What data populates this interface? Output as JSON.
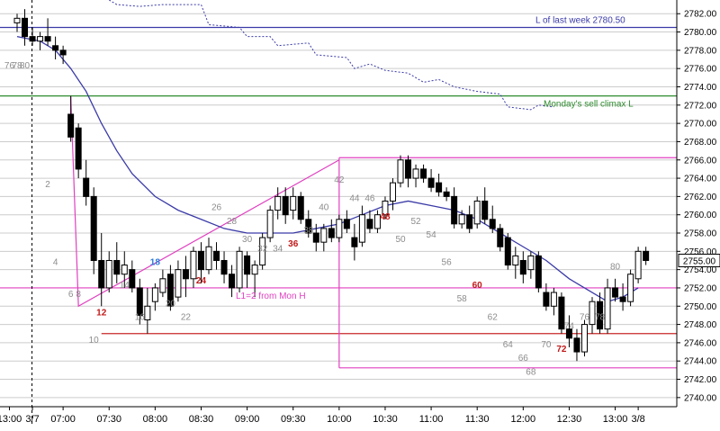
{
  "chart_data": {
    "type": "candlestick",
    "y_axis": {
      "range": [
        2739,
        2783.5
      ],
      "tick_labels": [
        "2782.00",
        "2780.00",
        "2778.00",
        "2776.00",
        "2774.00",
        "2772.00",
        "2770.00",
        "2768.00",
        "2766.00",
        "2764.00",
        "2762.00",
        "2760.00",
        "2758.00",
        "2756.00",
        "2754.00",
        "2752.00",
        "2750.00",
        "2748.00",
        "2746.00",
        "2744.00",
        "2742.00",
        "2740.00"
      ],
      "gridlines": true
    },
    "x_axis": {
      "tick_labels": [
        {
          "label": "13:00",
          "bar": -1
        },
        {
          "label": "3/7",
          "bar": 2
        },
        {
          "label": "07:00",
          "bar": 6
        },
        {
          "label": "07:30",
          "bar": 12
        },
        {
          "label": "08:00",
          "bar": 18
        },
        {
          "label": "08:30",
          "bar": 24
        },
        {
          "label": "09:00",
          "bar": 30
        },
        {
          "label": "09:30",
          "bar": 36
        },
        {
          "label": "10:00",
          "bar": 42
        },
        {
          "label": "10:30",
          "bar": 48
        },
        {
          "label": "11:00",
          "bar": 54
        },
        {
          "label": "11:30",
          "bar": 60
        },
        {
          "label": "12:00",
          "bar": 66
        },
        {
          "label": "12:30",
          "bar": 72
        },
        {
          "label": "13:00",
          "bar": 78
        },
        {
          "label": "3/8",
          "bar": 81
        }
      ]
    },
    "price_label": "2755.00",
    "candles": [
      {
        "o": 2781.0,
        "h": 2782.0,
        "l": 2780.0,
        "c": 2781.5
      },
      {
        "o": 2781.5,
        "h": 2782.5,
        "l": 2778.5,
        "c": 2779.5
      },
      {
        "o": 2779.5,
        "h": 2780.5,
        "l": 2778.5,
        "c": 2779.0
      },
      {
        "o": 2779.0,
        "h": 2780.0,
        "l": 2778.0,
        "c": 2779.5
      },
      {
        "o": 2779.5,
        "h": 2781.5,
        "l": 2778.5,
        "c": 2779.0
      },
      {
        "o": 2778.5,
        "h": 2779.5,
        "l": 2777.0,
        "c": 2778.0
      },
      {
        "o": 2778.0,
        "h": 2778.5,
        "l": 2776.5,
        "c": 2777.5
      },
      {
        "o": 2771.0,
        "h": 2773.0,
        "l": 2768.0,
        "c": 2768.5
      },
      {
        "o": 2769.5,
        "h": 2770.0,
        "l": 2764.0,
        "c": 2765.0
      },
      {
        "o": 2764.0,
        "h": 2766.0,
        "l": 2761.0,
        "c": 2762.0
      },
      {
        "o": 2762.0,
        "h": 2763.0,
        "l": 2753.5,
        "c": 2755.0
      },
      {
        "o": 2755.0,
        "h": 2758.0,
        "l": 2750.0,
        "c": 2752.0
      },
      {
        "o": 2752.0,
        "h": 2756.0,
        "l": 2751.5,
        "c": 2755.0
      },
      {
        "o": 2755.0,
        "h": 2757.0,
        "l": 2752.5,
        "c": 2753.5
      },
      {
        "o": 2753.5,
        "h": 2756.0,
        "l": 2752.0,
        "c": 2754.5
      },
      {
        "o": 2754.0,
        "h": 2755.0,
        "l": 2751.5,
        "c": 2752.0
      },
      {
        "o": 2752.0,
        "h": 2753.0,
        "l": 2748.0,
        "c": 2749.0
      },
      {
        "o": 2748.5,
        "h": 2752.0,
        "l": 2747.0,
        "c": 2750.0
      },
      {
        "o": 2750.5,
        "h": 2752.5,
        "l": 2749.5,
        "c": 2752.0
      },
      {
        "o": 2751.5,
        "h": 2754.0,
        "l": 2751.0,
        "c": 2753.0
      },
      {
        "o": 2753.5,
        "h": 2754.5,
        "l": 2749.5,
        "c": 2750.0
      },
      {
        "o": 2751.0,
        "h": 2755.0,
        "l": 2750.5,
        "c": 2754.0
      },
      {
        "o": 2754.0,
        "h": 2755.5,
        "l": 2751.0,
        "c": 2753.0
      },
      {
        "o": 2753.0,
        "h": 2756.5,
        "l": 2752.0,
        "c": 2756.0
      },
      {
        "o": 2756.0,
        "h": 2757.0,
        "l": 2752.5,
        "c": 2754.0
      },
      {
        "o": 2754.0,
        "h": 2757.5,
        "l": 2753.5,
        "c": 2756.5
      },
      {
        "o": 2756.0,
        "h": 2757.0,
        "l": 2754.0,
        "c": 2755.0
      },
      {
        "o": 2755.0,
        "h": 2756.0,
        "l": 2752.5,
        "c": 2753.5
      },
      {
        "o": 2753.5,
        "h": 2754.5,
        "l": 2751.0,
        "c": 2752.0
      },
      {
        "o": 2752.0,
        "h": 2756.5,
        "l": 2751.5,
        "c": 2756.0
      },
      {
        "o": 2755.5,
        "h": 2756.0,
        "l": 2752.0,
        "c": 2753.5
      },
      {
        "o": 2753.5,
        "h": 2755.0,
        "l": 2751.0,
        "c": 2754.5
      },
      {
        "o": 2754.5,
        "h": 2758.0,
        "l": 2754.0,
        "c": 2757.5
      },
      {
        "o": 2757.5,
        "h": 2761.0,
        "l": 2757.0,
        "c": 2760.5
      },
      {
        "o": 2760.5,
        "h": 2763.0,
        "l": 2759.5,
        "c": 2762.0
      },
      {
        "o": 2762.0,
        "h": 2763.0,
        "l": 2759.0,
        "c": 2760.0
      },
      {
        "o": 2760.5,
        "h": 2763.0,
        "l": 2759.5,
        "c": 2762.0
      },
      {
        "o": 2762.0,
        "h": 2762.5,
        "l": 2759.0,
        "c": 2759.5
      },
      {
        "o": 2759.5,
        "h": 2760.5,
        "l": 2757.5,
        "c": 2758.0
      },
      {
        "o": 2758.0,
        "h": 2759.0,
        "l": 2756.0,
        "c": 2757.0
      },
      {
        "o": 2757.0,
        "h": 2759.0,
        "l": 2756.0,
        "c": 2758.5
      },
      {
        "o": 2758.5,
        "h": 2759.5,
        "l": 2757.0,
        "c": 2757.5
      },
      {
        "o": 2757.5,
        "h": 2760.0,
        "l": 2757.0,
        "c": 2759.5
      },
      {
        "o": 2759.5,
        "h": 2760.5,
        "l": 2758.0,
        "c": 2758.5
      },
      {
        "o": 2757.5,
        "h": 2759.0,
        "l": 2755.0,
        "c": 2756.5
      },
      {
        "o": 2757.0,
        "h": 2761.0,
        "l": 2756.5,
        "c": 2760.0
      },
      {
        "o": 2759.5,
        "h": 2760.5,
        "l": 2758.0,
        "c": 2758.5
      },
      {
        "o": 2758.5,
        "h": 2760.5,
        "l": 2758.0,
        "c": 2760.0
      },
      {
        "o": 2760.0,
        "h": 2762.0,
        "l": 2759.5,
        "c": 2761.5
      },
      {
        "o": 2761.5,
        "h": 2764.0,
        "l": 2760.5,
        "c": 2763.5
      },
      {
        "o": 2763.5,
        "h": 2766.5,
        "l": 2763.0,
        "c": 2766.0
      },
      {
        "o": 2766.0,
        "h": 2766.5,
        "l": 2763.0,
        "c": 2764.0
      },
      {
        "o": 2764.0,
        "h": 2765.5,
        "l": 2763.0,
        "c": 2765.0
      },
      {
        "o": 2765.0,
        "h": 2765.5,
        "l": 2763.5,
        "c": 2764.0
      },
      {
        "o": 2764.0,
        "h": 2765.0,
        "l": 2762.5,
        "c": 2763.0
      },
      {
        "o": 2763.5,
        "h": 2764.5,
        "l": 2762.0,
        "c": 2762.5
      },
      {
        "o": 2762.5,
        "h": 2763.0,
        "l": 2761.5,
        "c": 2762.0
      },
      {
        "o": 2762.0,
        "h": 2763.0,
        "l": 2758.5,
        "c": 2759.0
      },
      {
        "o": 2759.0,
        "h": 2760.5,
        "l": 2758.5,
        "c": 2760.0
      },
      {
        "o": 2760.0,
        "h": 2761.0,
        "l": 2758.0,
        "c": 2758.5
      },
      {
        "o": 2759.0,
        "h": 2762.0,
        "l": 2758.5,
        "c": 2761.5
      },
      {
        "o": 2761.5,
        "h": 2763.0,
        "l": 2759.0,
        "c": 2759.5
      },
      {
        "o": 2759.5,
        "h": 2761.0,
        "l": 2758.0,
        "c": 2758.5
      },
      {
        "o": 2758.5,
        "h": 2759.0,
        "l": 2756.0,
        "c": 2756.5
      },
      {
        "o": 2757.5,
        "h": 2758.0,
        "l": 2754.0,
        "c": 2754.5
      },
      {
        "o": 2754.5,
        "h": 2756.5,
        "l": 2753.0,
        "c": 2755.5
      },
      {
        "o": 2755.0,
        "h": 2756.0,
        "l": 2752.5,
        "c": 2753.5
      },
      {
        "o": 2754.0,
        "h": 2756.0,
        "l": 2753.0,
        "c": 2755.5
      },
      {
        "o": 2755.5,
        "h": 2756.0,
        "l": 2751.5,
        "c": 2752.0
      },
      {
        "o": 2751.5,
        "h": 2752.5,
        "l": 2749.5,
        "c": 2750.0
      },
      {
        "o": 2750.0,
        "h": 2752.0,
        "l": 2749.0,
        "c": 2751.5
      },
      {
        "o": 2751.0,
        "h": 2751.5,
        "l": 2747.0,
        "c": 2747.5
      },
      {
        "o": 2747.5,
        "h": 2749.0,
        "l": 2745.5,
        "c": 2746.5
      },
      {
        "o": 2746.5,
        "h": 2747.5,
        "l": 2744.0,
        "c": 2745.0
      },
      {
        "o": 2745.0,
        "h": 2748.5,
        "l": 2744.5,
        "c": 2748.0
      },
      {
        "o": 2748.0,
        "h": 2751.0,
        "l": 2747.0,
        "c": 2750.5
      },
      {
        "o": 2750.5,
        "h": 2751.5,
        "l": 2747.0,
        "c": 2747.5
      },
      {
        "o": 2747.5,
        "h": 2753.0,
        "l": 2747.0,
        "c": 2752.0
      },
      {
        "o": 2752.0,
        "h": 2753.0,
        "l": 2750.5,
        "c": 2751.0
      },
      {
        "o": 2751.0,
        "h": 2752.5,
        "l": 2749.5,
        "c": 2750.5
      },
      {
        "o": 2750.5,
        "h": 2754.0,
        "l": 2750.0,
        "c": 2753.5
      },
      {
        "o": 2753.0,
        "h": 2756.5,
        "l": 2752.5,
        "c": 2756.0
      },
      {
        "o": 2756.0,
        "h": 2756.5,
        "l": 2754.5,
        "c": 2755.0
      }
    ],
    "moving_average": [
      {
        "bar": 0,
        "y": 2779.5
      },
      {
        "bar": 3,
        "y": 2779.0
      },
      {
        "bar": 5,
        "y": 2778.0
      },
      {
        "bar": 7,
        "y": 2776.0
      },
      {
        "bar": 9,
        "y": 2773.5
      },
      {
        "bar": 11,
        "y": 2770.0
      },
      {
        "bar": 13,
        "y": 2767.0
      },
      {
        "bar": 15,
        "y": 2764.5
      },
      {
        "bar": 18,
        "y": 2762.0
      },
      {
        "bar": 21,
        "y": 2760.5
      },
      {
        "bar": 24,
        "y": 2759.5
      },
      {
        "bar": 27,
        "y": 2758.5
      },
      {
        "bar": 30,
        "y": 2758.0
      },
      {
        "bar": 33,
        "y": 2758.0
      },
      {
        "bar": 36,
        "y": 2758.0
      },
      {
        "bar": 39,
        "y": 2758.5
      },
      {
        "bar": 42,
        "y": 2759.0
      },
      {
        "bar": 45,
        "y": 2760.0
      },
      {
        "bar": 48,
        "y": 2761.0
      },
      {
        "bar": 51,
        "y": 2761.5
      },
      {
        "bar": 54,
        "y": 2761.0
      },
      {
        "bar": 57,
        "y": 2760.5
      },
      {
        "bar": 60,
        "y": 2759.5
      },
      {
        "bar": 63,
        "y": 2758.0
      },
      {
        "bar": 66,
        "y": 2756.5
      },
      {
        "bar": 69,
        "y": 2755.0
      },
      {
        "bar": 72,
        "y": 2753.0
      },
      {
        "bar": 75,
        "y": 2751.5
      },
      {
        "bar": 77,
        "y": 2750.5
      },
      {
        "bar": 79,
        "y": 2751.0
      },
      {
        "bar": 81,
        "y": 2752.0
      }
    ],
    "bar_labels": [
      {
        "text": "76",
        "bar": -1,
        "y": 2776.0,
        "color": "gray"
      },
      {
        "text": "78",
        "bar": 0,
        "y": 2776.0,
        "color": "gray"
      },
      {
        "text": "80",
        "bar": 1,
        "y": 2776.0,
        "color": "gray"
      },
      {
        "text": "2",
        "bar": 4,
        "y": 2763.0,
        "color": "gray"
      },
      {
        "text": "4",
        "bar": 5,
        "y": 2754.5,
        "color": "gray"
      },
      {
        "text": "6",
        "bar": 7,
        "y": 2751.0,
        "color": "gray"
      },
      {
        "text": "8",
        "bar": 8,
        "y": 2751.0,
        "color": "gray"
      },
      {
        "text": "10",
        "bar": 10,
        "y": 2746.0,
        "color": "gray"
      },
      {
        "text": "12",
        "bar": 11,
        "y": 2749.0,
        "color": "red"
      },
      {
        "text": "14",
        "bar": 14,
        "y": 2752.0,
        "color": "gray"
      },
      {
        "text": "16",
        "bar": 16,
        "y": 2748.5,
        "color": "gray"
      },
      {
        "text": "18",
        "bar": 18,
        "y": 2754.5,
        "color": "blue"
      },
      {
        "text": "20",
        "bar": 20,
        "y": 2750.0,
        "color": "gray"
      },
      {
        "text": "22",
        "bar": 22,
        "y": 2748.5,
        "color": "gray"
      },
      {
        "text": "24",
        "bar": 24,
        "y": 2752.5,
        "color": "red"
      },
      {
        "text": "26",
        "bar": 26,
        "y": 2760.5,
        "color": "gray"
      },
      {
        "text": "28",
        "bar": 28,
        "y": 2759.0,
        "color": "gray"
      },
      {
        "text": "30",
        "bar": 30,
        "y": 2757.0,
        "color": "gray"
      },
      {
        "text": "32",
        "bar": 32,
        "y": 2756.0,
        "color": "gray"
      },
      {
        "text": "34",
        "bar": 34,
        "y": 2756.0,
        "color": "gray"
      },
      {
        "text": "36",
        "bar": 36,
        "y": 2756.5,
        "color": "red"
      },
      {
        "text": "38",
        "bar": 38,
        "y": 2758.0,
        "color": "gray"
      },
      {
        "text": "40",
        "bar": 40,
        "y": 2760.5,
        "color": "gray"
      },
      {
        "text": "42",
        "bar": 42,
        "y": 2763.5,
        "color": "gray"
      },
      {
        "text": "44",
        "bar": 44,
        "y": 2761.5,
        "color": "gray"
      },
      {
        "text": "46",
        "bar": 46,
        "y": 2761.5,
        "color": "gray"
      },
      {
        "text": "48",
        "bar": 48,
        "y": 2759.5,
        "color": "red"
      },
      {
        "text": "50",
        "bar": 50,
        "y": 2757.0,
        "color": "gray"
      },
      {
        "text": "52",
        "bar": 52,
        "y": 2759.0,
        "color": "gray"
      },
      {
        "text": "54",
        "bar": 54,
        "y": 2757.5,
        "color": "gray"
      },
      {
        "text": "56",
        "bar": 56,
        "y": 2754.5,
        "color": "gray"
      },
      {
        "text": "58",
        "bar": 58,
        "y": 2750.5,
        "color": "gray"
      },
      {
        "text": "60",
        "bar": 60,
        "y": 2752.0,
        "color": "red"
      },
      {
        "text": "62",
        "bar": 62,
        "y": 2748.5,
        "color": "gray"
      },
      {
        "text": "64",
        "bar": 64,
        "y": 2745.5,
        "color": "gray"
      },
      {
        "text": "66",
        "bar": 66,
        "y": 2744.0,
        "color": "gray"
      },
      {
        "text": "68",
        "bar": 67,
        "y": 2742.5,
        "color": "gray"
      },
      {
        "text": "70",
        "bar": 69,
        "y": 2745.5,
        "color": "gray"
      },
      {
        "text": "72",
        "bar": 71,
        "y": 2745.0,
        "color": "red"
      },
      {
        "text": "74",
        "bar": 72,
        "y": 2747.5,
        "color": "gray"
      },
      {
        "text": "76",
        "bar": 74,
        "y": 2748.5,
        "color": "gray"
      },
      {
        "text": "78",
        "bar": 76,
        "y": 2748.5,
        "color": "gray"
      },
      {
        "text": "80",
        "bar": 78,
        "y": 2754.0,
        "color": "gray"
      }
    ],
    "horizontal_lines": [
      {
        "y": 2780.5,
        "color": "#3a3aa8",
        "x_from_bar": -1,
        "label": "L of last week 2780.50"
      },
      {
        "y": 2773.0,
        "color": "#2e8b2e",
        "x_from_bar": -1,
        "label": "Monday's sell climax L"
      },
      {
        "y": 2752.0,
        "color": "#e040c0",
        "x_from_bar": -1,
        "label": "L1=2 from Mon H"
      },
      {
        "y": 2766.25,
        "color": "#e040c0",
        "x_from_bar": 42,
        "label": ""
      },
      {
        "y": 2747.0,
        "color": "#c82828",
        "x_from_bar": 11,
        "label": ""
      },
      {
        "y": 2743.25,
        "color": "#e040c0",
        "x_from_bar": 42,
        "label": ""
      }
    ],
    "pink_vertical": {
      "bar": 42,
      "y_from": 2766.25,
      "y_to": 2743.25
    },
    "pink_polyline": [
      {
        "bar": 7,
        "y": 2773.0
      },
      {
        "bar": 8,
        "y": 2750.0
      },
      {
        "bar": 42,
        "y": 2766.0
      }
    ],
    "blue_dotted_line": [
      {
        "bar": 12,
        "y": 2783.5
      },
      {
        "bar": 13,
        "y": 2783.0
      },
      {
        "bar": 16,
        "y": 2782.8
      },
      {
        "bar": 19,
        "y": 2783.0
      },
      {
        "bar": 24,
        "y": 2783.0
      },
      {
        "bar": 25,
        "y": 2780.8
      },
      {
        "bar": 29,
        "y": 2780.5
      },
      {
        "bar": 30,
        "y": 2779.5
      },
      {
        "bar": 33,
        "y": 2779.5
      },
      {
        "bar": 34,
        "y": 2778.5
      },
      {
        "bar": 38,
        "y": 2778.8
      },
      {
        "bar": 39,
        "y": 2777.5
      },
      {
        "bar": 43,
        "y": 2777.2
      },
      {
        "bar": 44,
        "y": 2776.0
      },
      {
        "bar": 46,
        "y": 2776.5
      },
      {
        "bar": 48,
        "y": 2775.8
      },
      {
        "bar": 51,
        "y": 2775.5
      },
      {
        "bar": 53,
        "y": 2774.5
      },
      {
        "bar": 55,
        "y": 2774.8
      },
      {
        "bar": 57,
        "y": 2774.0
      },
      {
        "bar": 60,
        "y": 2773.5
      },
      {
        "bar": 63,
        "y": 2773.2
      },
      {
        "bar": 64,
        "y": 2771.8
      },
      {
        "bar": 67,
        "y": 2771.5
      },
      {
        "bar": 68,
        "y": 2772.0
      },
      {
        "bar": 70,
        "y": 2771.8
      }
    ],
    "colors": {
      "up_fill": "#ffffff",
      "down_fill": "#000000",
      "outline": "#000000",
      "moving_average": "#3a3aa8",
      "grid": "#cccccc",
      "label_gray": "#8c8c8c",
      "label_red": "#c01818",
      "label_blue": "#2a7ad8",
      "price_box_bg": "#ffffff"
    }
  }
}
